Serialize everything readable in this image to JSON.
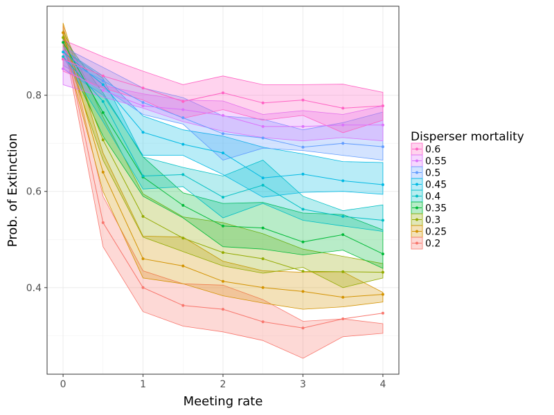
{
  "chart_data": {
    "type": "line",
    "xlabel": "Meeting rate",
    "ylabel": "Prob. of Extinction",
    "xlim": [
      -0.2,
      4.2
    ],
    "ylim": [
      0.22,
      0.985
    ],
    "x_ticks": [
      0,
      1,
      2,
      3,
      4
    ],
    "y_ticks": [
      0.4,
      0.6,
      0.8
    ],
    "x": [
      0,
      0.5,
      1,
      1.5,
      2,
      2.5,
      3,
      3.5,
      4
    ],
    "grid": true,
    "legend": {
      "title": "Disperser mortality",
      "position": "right"
    },
    "series": [
      {
        "name": "0.6",
        "color": "#ff61c3",
        "values": [
          0.875,
          0.84,
          0.815,
          0.787,
          0.805,
          0.784,
          0.79,
          0.773,
          0.778
        ],
        "lower": [
          0.85,
          0.815,
          0.79,
          0.752,
          0.77,
          0.748,
          0.758,
          0.722,
          0.748
        ],
        "upper": [
          0.915,
          0.88,
          0.85,
          0.822,
          0.84,
          0.822,
          0.822,
          0.823,
          0.806
        ]
      },
      {
        "name": "0.55",
        "color": "#db72fb",
        "values": [
          0.855,
          0.81,
          0.778,
          0.77,
          0.758,
          0.735,
          0.735,
          0.738,
          0.738
        ],
        "lower": [
          0.822,
          0.796,
          0.773,
          0.745,
          0.725,
          0.712,
          0.705,
          0.712,
          0.705
        ],
        "upper": [
          0.895,
          0.82,
          0.803,
          0.79,
          0.788,
          0.76,
          0.768,
          0.76,
          0.778
        ]
      },
      {
        "name": "0.5",
        "color": "#619cff",
        "values": [
          0.875,
          0.83,
          0.785,
          0.753,
          0.72,
          0.711,
          0.692,
          0.7,
          0.693
        ],
        "lower": [
          0.862,
          0.815,
          0.76,
          0.74,
          0.665,
          0.69,
          0.685,
          0.675,
          0.665
        ],
        "upper": [
          0.9,
          0.858,
          0.815,
          0.795,
          0.757,
          0.75,
          0.728,
          0.743,
          0.765
        ]
      },
      {
        "name": "0.45",
        "color": "#00b9e3",
        "values": [
          0.89,
          0.822,
          0.723,
          0.698,
          0.68,
          0.628,
          0.636,
          0.622,
          0.614
        ],
        "lower": [
          0.855,
          0.8,
          0.675,
          0.675,
          0.635,
          0.588,
          0.598,
          0.6,
          0.594
        ],
        "upper": [
          0.895,
          0.84,
          0.757,
          0.728,
          0.715,
          0.692,
          0.678,
          0.662,
          0.66
        ]
      },
      {
        "name": "0.4",
        "color": "#00bfc4",
        "values": [
          0.88,
          0.787,
          0.632,
          0.635,
          0.588,
          0.613,
          0.563,
          0.548,
          0.54
        ],
        "lower": [
          0.88,
          0.745,
          0.605,
          0.61,
          0.545,
          0.575,
          0.54,
          0.528,
          0.517
        ],
        "upper": [
          0.895,
          0.835,
          0.672,
          0.65,
          0.632,
          0.665,
          0.59,
          0.56,
          0.572
        ]
      },
      {
        "name": "0.35",
        "color": "#00ba38",
        "values": [
          0.91,
          0.764,
          0.63,
          0.571,
          0.528,
          0.524,
          0.495,
          0.51,
          0.47
        ],
        "lower": [
          0.895,
          0.715,
          0.59,
          0.545,
          0.485,
          0.48,
          0.468,
          0.478,
          0.44
        ],
        "upper": [
          0.92,
          0.805,
          0.672,
          0.597,
          0.575,
          0.577,
          0.555,
          0.552,
          0.52
        ]
      },
      {
        "name": "0.3",
        "color": "#93aa00",
        "values": [
          0.92,
          0.707,
          0.548,
          0.503,
          0.473,
          0.46,
          0.434,
          0.433,
          0.432
        ],
        "lower": [
          0.905,
          0.665,
          0.505,
          0.475,
          0.445,
          0.43,
          0.442,
          0.4,
          0.42
        ],
        "upper": [
          0.935,
          0.755,
          0.595,
          0.547,
          0.535,
          0.512,
          0.48,
          0.465,
          0.45
        ]
      },
      {
        "name": "0.25",
        "color": "#d39200",
        "values": [
          0.93,
          0.64,
          0.46,
          0.445,
          0.413,
          0.4,
          0.392,
          0.38,
          0.386
        ],
        "lower": [
          0.91,
          0.6,
          0.42,
          0.408,
          0.383,
          0.368,
          0.355,
          0.36,
          0.37
        ],
        "upper": [
          0.95,
          0.68,
          0.507,
          0.505,
          0.455,
          0.435,
          0.432,
          0.433,
          0.39
        ]
      },
      {
        "name": "0.2",
        "color": "#f8766d",
        "values": [
          0.93,
          0.535,
          0.4,
          0.363,
          0.355,
          0.329,
          0.316,
          0.335,
          0.347
        ],
        "lower": [
          0.92,
          0.485,
          0.35,
          0.32,
          0.308,
          0.29,
          0.253,
          0.298,
          0.305
        ],
        "upper": [
          0.945,
          0.59,
          0.435,
          0.408,
          0.405,
          0.375,
          0.33,
          0.335,
          0.325
        ]
      }
    ]
  }
}
